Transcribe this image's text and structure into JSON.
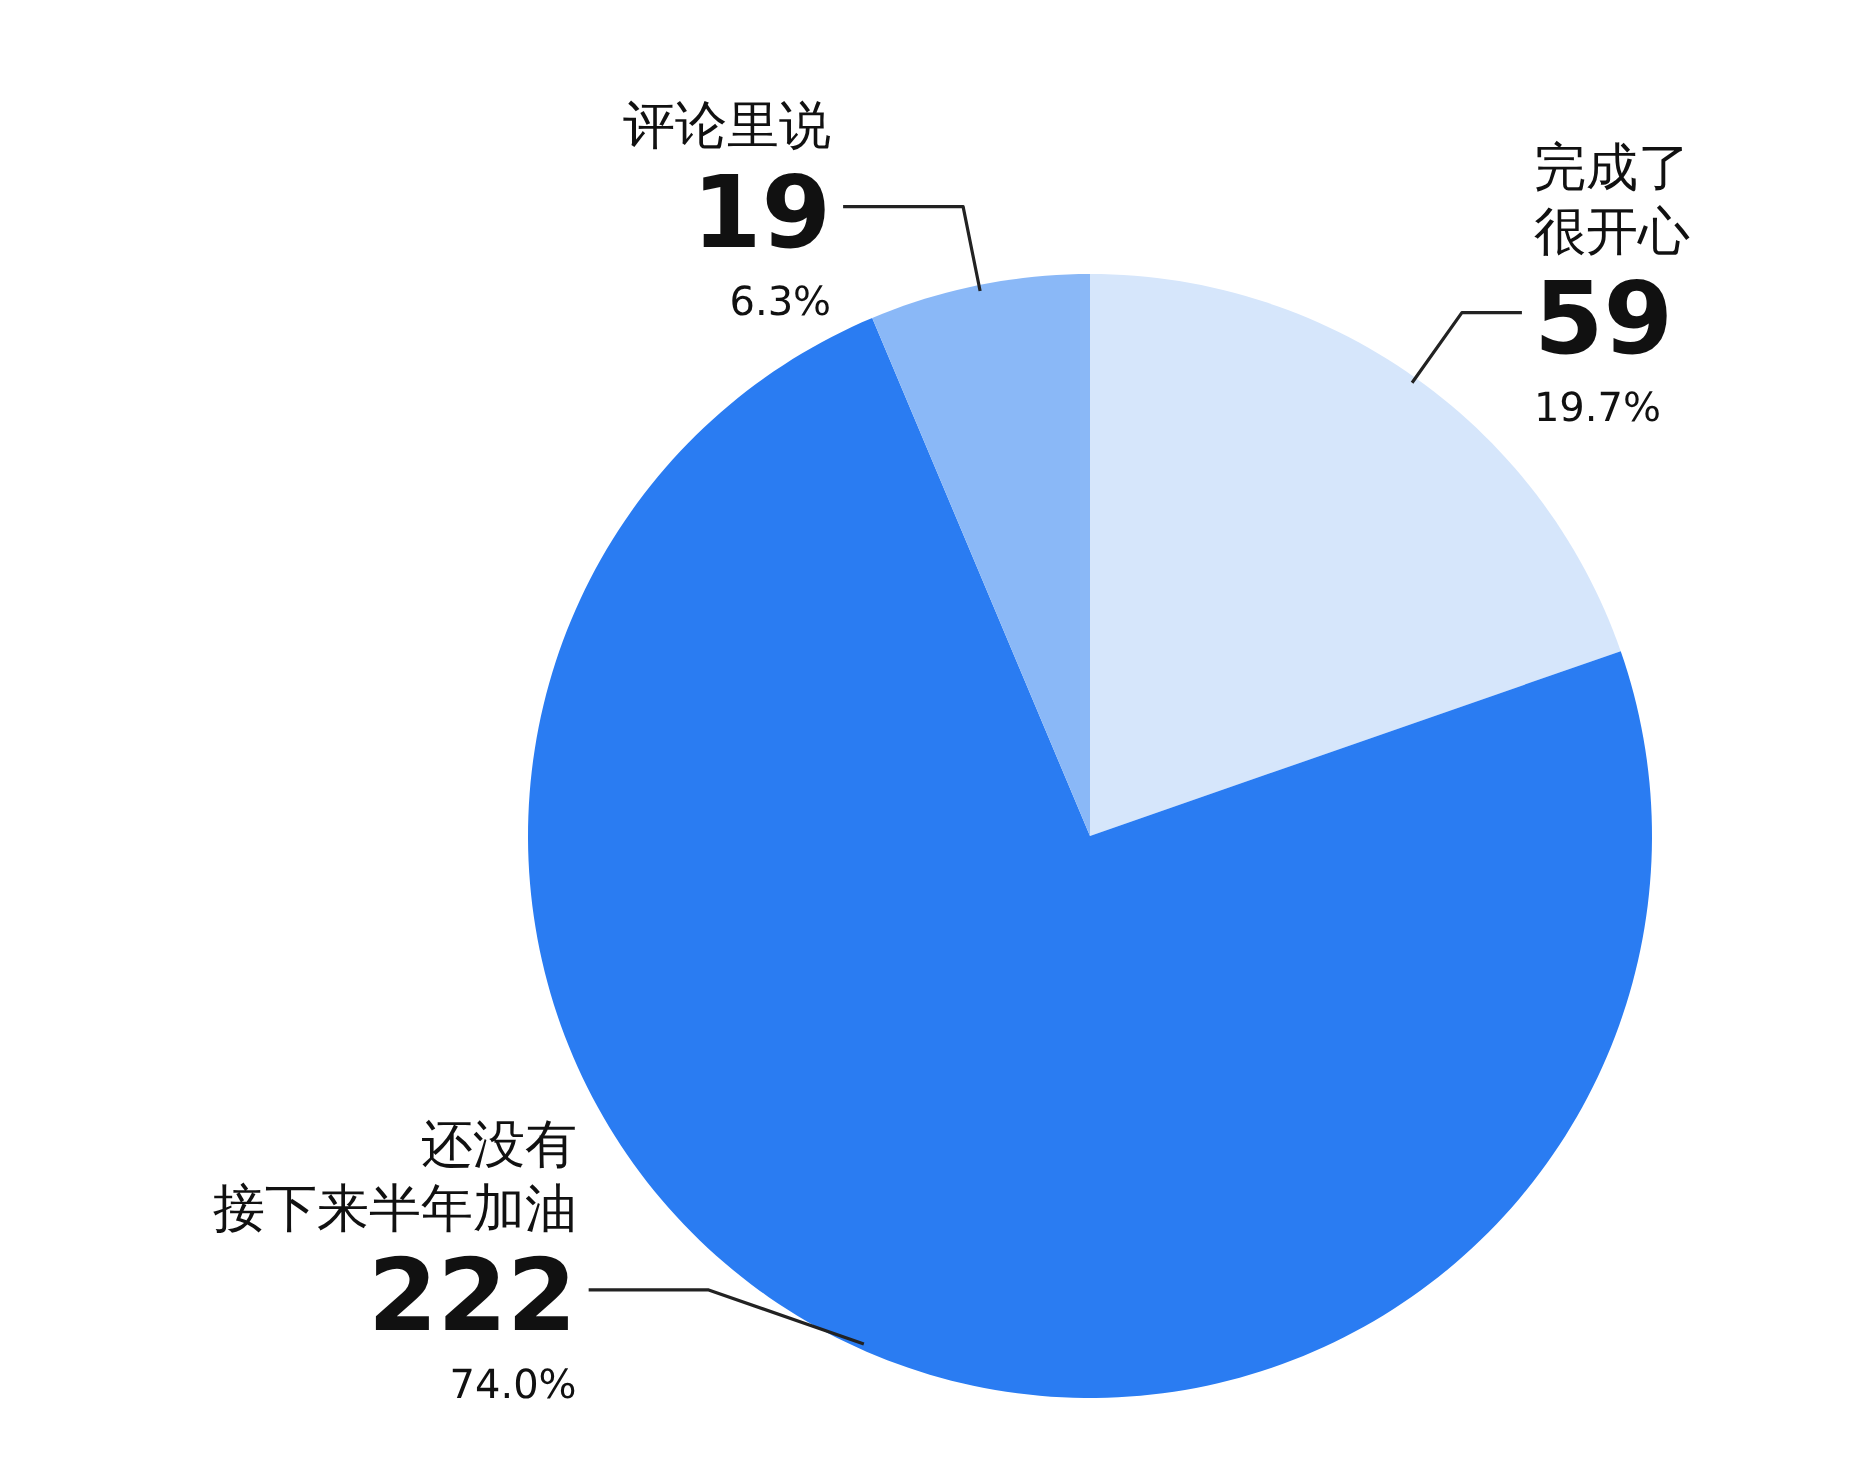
{
  "chart_data": {
    "type": "pie",
    "categories": [
      "完成了很开心",
      "还没有接下来半年加油",
      "评论里说"
    ],
    "values": [
      59,
      222,
      19
    ],
    "colors": [
      "#d6e6fb",
      "#2a7cf2",
      "#8ab8f7"
    ],
    "data_labels": true,
    "annotations": [
      "19.7%",
      "74.0%",
      "6.3%"
    ]
  }
}
